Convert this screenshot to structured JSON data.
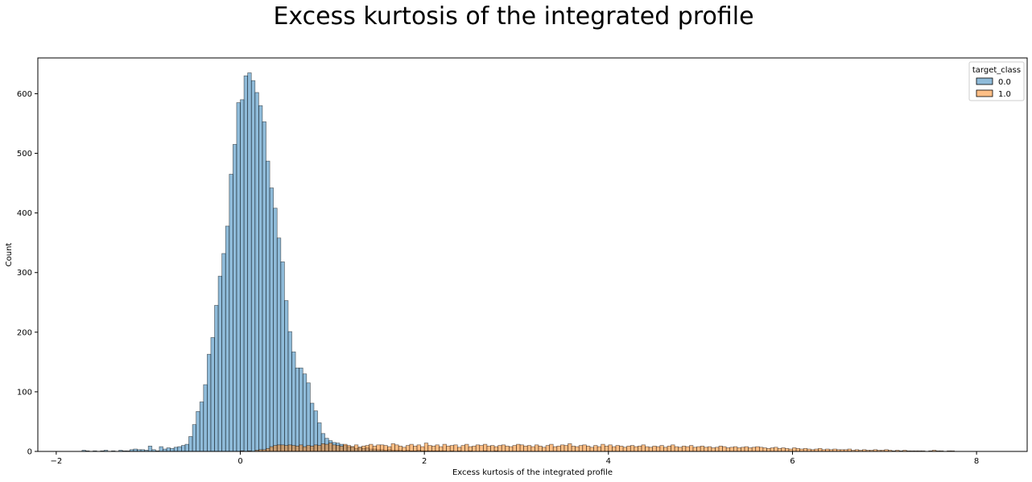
{
  "chart_data": {
    "type": "bar",
    "title": "Excess kurtosis of the integrated profile",
    "xlabel": "Excess kurtosis of the integrated profile",
    "ylabel": "Count",
    "xlim": [
      -2.2,
      8.55
    ],
    "ylim": [
      0,
      660
    ],
    "x_ticks": [
      -2,
      0,
      2,
      4,
      6,
      8
    ],
    "y_ticks": [
      0,
      100,
      200,
      300,
      400,
      500,
      600
    ],
    "grid": false,
    "legend": {
      "title": "target_class",
      "placement": "top-right"
    },
    "bin_width": 0.04,
    "series": [
      {
        "name": "0.0",
        "color": "#1f77b4",
        "bin_start": -1.72,
        "values": [
          2,
          1,
          0,
          1,
          0,
          1,
          2,
          0,
          1,
          0,
          2,
          1,
          1,
          3,
          4,
          3,
          3,
          2,
          9,
          3,
          1,
          8,
          4,
          6,
          5,
          7,
          8,
          10,
          12,
          25,
          45,
          67,
          83,
          112,
          163,
          191,
          245,
          294,
          332,
          378,
          465,
          515,
          585,
          590,
          630,
          635,
          622,
          602,
          580,
          553,
          487,
          442,
          408,
          358,
          318,
          253,
          201,
          167,
          140,
          140,
          130,
          115,
          81,
          68,
          48,
          30,
          22,
          18,
          15,
          14,
          12,
          10,
          8,
          8,
          5,
          7,
          5,
          6,
          4,
          4,
          3,
          3,
          2,
          3,
          2,
          2,
          2,
          1,
          2,
          1,
          1,
          2,
          1,
          1,
          1,
          1,
          1,
          1,
          1,
          0,
          1,
          0,
          1,
          0,
          0,
          1,
          0,
          0,
          0,
          1,
          0,
          0,
          1
        ]
      },
      {
        "name": "1.0",
        "color": "#ff7f0e",
        "bin_start": 0.0,
        "values": [
          1,
          0,
          1,
          0,
          2,
          3,
          3,
          5,
          8,
          10,
          11,
          11,
          10,
          11,
          10,
          9,
          11,
          8,
          10,
          9,
          11,
          10,
          13,
          12,
          14,
          11,
          10,
          9,
          12,
          10,
          8,
          11,
          7,
          9,
          10,
          12,
          9,
          11,
          11,
          10,
          8,
          13,
          11,
          9,
          7,
          10,
          12,
          9,
          11,
          8,
          14,
          10,
          9,
          11,
          8,
          12,
          9,
          10,
          11,
          7,
          10,
          12,
          8,
          9,
          11,
          10,
          12,
          9,
          10,
          8,
          10,
          11,
          9,
          8,
          10,
          12,
          11,
          9,
          10,
          8,
          11,
          9,
          7,
          10,
          12,
          8,
          9,
          11,
          10,
          13,
          9,
          8,
          10,
          11,
          9,
          7,
          10,
          8,
          12,
          9,
          11,
          8,
          10,
          9,
          7,
          9,
          10,
          8,
          9,
          11,
          8,
          7,
          9,
          8,
          10,
          7,
          9,
          11,
          8,
          7,
          9,
          8,
          10,
          7,
          8,
          9,
          7,
          8,
          6,
          7,
          9,
          8,
          6,
          7,
          8,
          6,
          7,
          8,
          6,
          7,
          8,
          7,
          6,
          5,
          6,
          7,
          5,
          6,
          5,
          4,
          6,
          5,
          4,
          5,
          4,
          3,
          4,
          5,
          3,
          4,
          3,
          4,
          3,
          3,
          3,
          4,
          2,
          3,
          2,
          3,
          2,
          2,
          3,
          2,
          2,
          3,
          2,
          1,
          2,
          1,
          2,
          1,
          1,
          1,
          1,
          1,
          0,
          1,
          2,
          1,
          1,
          0,
          1,
          1
        ]
      }
    ]
  }
}
